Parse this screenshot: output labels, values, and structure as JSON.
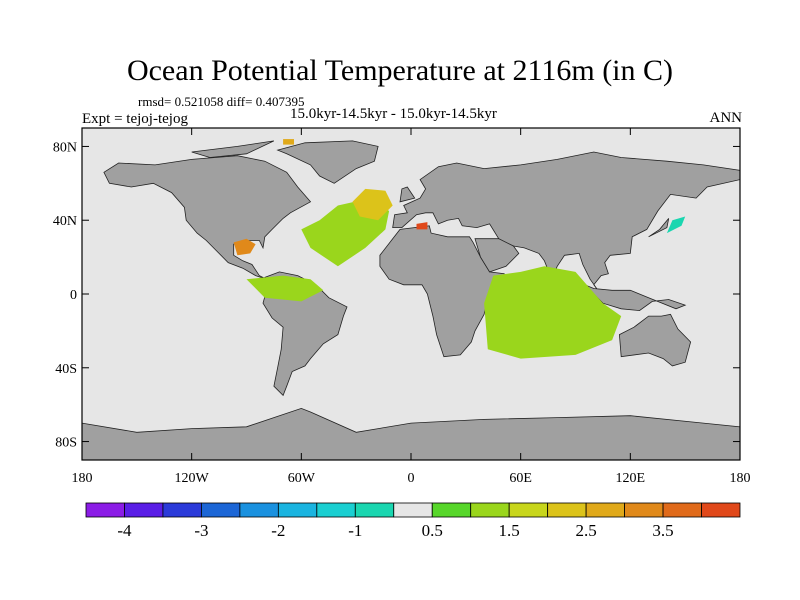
{
  "chart_data": {
    "type": "heatmap",
    "title": "Ocean Potential Temperature at 2116m (in C)",
    "stats_line": "rmsd= 0.521058 diff= 0.407395",
    "left_label": "Expt = tejoj-tejog",
    "subtitle": "15.0kyr-14.5kyr - 15.0kyr-14.5kyr",
    "right_label": "ANN",
    "x_ticks": [
      "180",
      "120W",
      "60W",
      "0",
      "60E",
      "120E",
      "180"
    ],
    "x_tick_values": [
      -180,
      -120,
      -60,
      0,
      60,
      120,
      180
    ],
    "y_ticks": [
      "80N",
      "40N",
      "0",
      "40S",
      "80S"
    ],
    "y_tick_values": [
      80,
      40,
      0,
      -40,
      -80
    ],
    "xlim": [
      -180,
      180
    ],
    "ylim": [
      -90,
      90
    ],
    "colorbar": {
      "colors": [
        "#8b1ce6",
        "#5a1ee6",
        "#2b3ad9",
        "#1c66d6",
        "#1a91df",
        "#1ab4e0",
        "#1acfd1",
        "#1ad6b0",
        "#e6e6e6",
        "#57d62a",
        "#9ad61c",
        "#c8d61c",
        "#dcc31a",
        "#e0a91a",
        "#e0891a",
        "#e06a1a",
        "#e0481a"
      ],
      "tick_labels": [
        "-4",
        "-3",
        "-2",
        "-1",
        "0.5",
        "1.5",
        "2.5",
        "3.5"
      ],
      "tick_positions": [
        1,
        3,
        5,
        7,
        9,
        11,
        13,
        15
      ]
    },
    "land_color": "#a0a0a0",
    "ocean_color": "#e6e6e6",
    "regions": [
      {
        "lon": -38,
        "lat": 35,
        "value": 0.8
      },
      {
        "lon": -22,
        "lat": 47,
        "value": 1.5
      },
      {
        "lon": 5,
        "lat": 37,
        "value": 3.6
      },
      {
        "lon": 145,
        "lat": 37,
        "value": -1.3
      },
      {
        "lon": -92,
        "lat": 25,
        "value": 2.6
      },
      {
        "lon": -68,
        "lat": 83,
        "value": 2.4
      },
      {
        "lon": 75,
        "lat": -10,
        "value": 0.6
      },
      {
        "lon": -60,
        "lat": 3,
        "value": 0.6
      }
    ]
  }
}
